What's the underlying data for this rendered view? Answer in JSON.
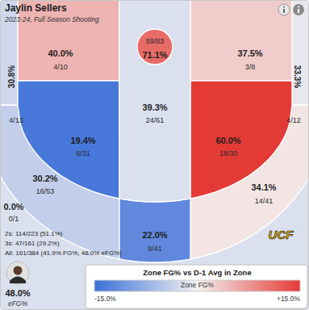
{
  "chart_data": {
    "type": "shot_chart",
    "title": "Jaylin Sellers",
    "subtitle": "2023-24, Full Season Shooting",
    "values": [
      71.1,
      39.3,
      40.0,
      37.5,
      19.4,
      60.0,
      22.0,
      30.8,
      33.3,
      30.2,
      34.1,
      0.0
    ],
    "value_labels": [
      "71.1%",
      "39.3%",
      "40.0%",
      "37.5%",
      "19.4%",
      "60.0%",
      "22.0%",
      "30.8%",
      "33.3%",
      "30.2%",
      "34.1%",
      "0.0%"
    ],
    "shots": [
      "59/83",
      "24/61",
      "4/10",
      "3/8",
      "6/31",
      "18/30",
      "9/41",
      "4/13",
      "4/12",
      "16/53",
      "14/41",
      "0/1"
    ],
    "vs_d1": [
      11,
      -2,
      5,
      3,
      -14,
      15,
      -12,
      -3,
      -1,
      -4,
      1,
      -2
    ],
    "annotations": [
      "2s: 114/223 (51.1%)",
      "3s: 47/161 (29.2%)",
      "All: 161/384 (41.9% FG%, 48.0% eFG%)"
    ],
    "efg": {
      "label": "48.0%",
      "caption": "eFG%"
    },
    "logo": "UCF",
    "colorbar": {
      "title": "Zone FG% vs D-1 Avg in Zone",
      "label": "Zone FG%",
      "range": [
        -15,
        15
      ],
      "ticks": [
        {
          "value": -15,
          "label": "-15.0%"
        },
        {
          "value": 15,
          "label": "+15.0%"
        }
      ]
    }
  }
}
